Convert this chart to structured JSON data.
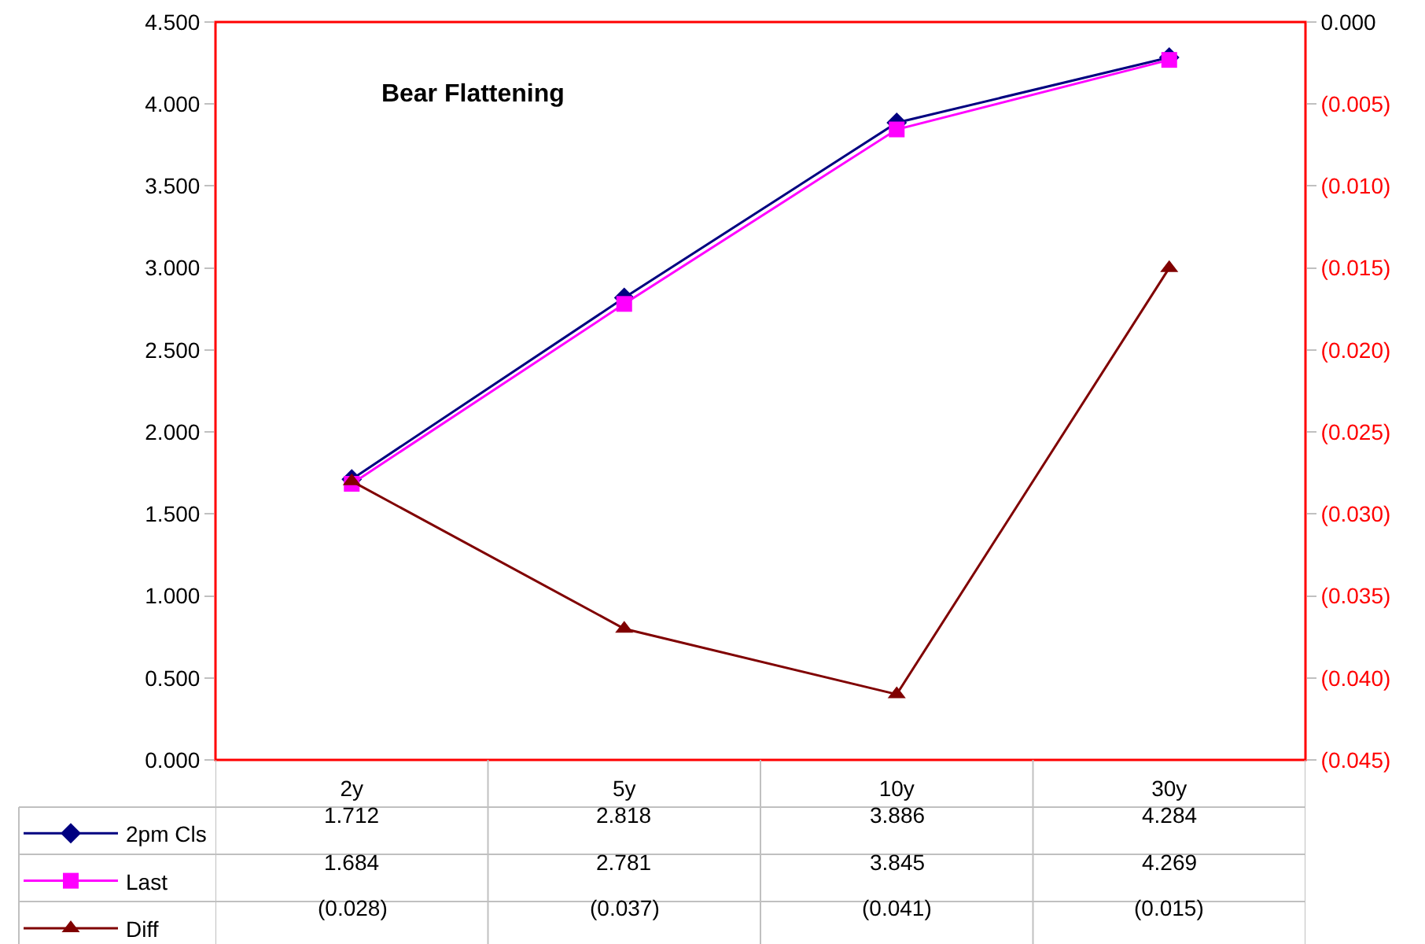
{
  "chart_data": {
    "type": "line",
    "title": "Bear Flattening",
    "categories": [
      "2y",
      "5y",
      "10y",
      "30y"
    ],
    "series": [
      {
        "name": "2pm Cls",
        "color": "#000080",
        "marker": "diamond",
        "values": [
          1.712,
          2.818,
          3.886,
          4.284
        ],
        "value_labels": [
          "1.712",
          "2.818",
          "3.886",
          "4.284"
        ]
      },
      {
        "name": "Last",
        "color": "#ff00ff",
        "marker": "square",
        "values": [
          1.684,
          2.781,
          3.845,
          4.269
        ],
        "value_labels": [
          "1.684",
          "2.781",
          "3.845",
          "4.269"
        ]
      },
      {
        "name": "Diff",
        "color": "#800000",
        "marker": "triangle",
        "axis": "y2",
        "values": [
          -0.028,
          -0.037,
          -0.041,
          -0.015
        ],
        "value_labels": [
          "(0.028)",
          "(0.037)",
          "(0.041)",
          "(0.015)"
        ]
      }
    ],
    "ylim": [
      0,
      4.5
    ],
    "yticks": [
      {
        "value": 0,
        "label": "0.000"
      },
      {
        "value": 0.5,
        "label": "0.500"
      },
      {
        "value": 1,
        "label": "1.000"
      },
      {
        "value": 1.5,
        "label": "1.500"
      },
      {
        "value": 2,
        "label": "2.000"
      },
      {
        "value": 2.5,
        "label": "2.500"
      },
      {
        "value": 3,
        "label": "3.000"
      },
      {
        "value": 3.5,
        "label": "3.500"
      },
      {
        "value": 4,
        "label": "4.000"
      },
      {
        "value": 4.5,
        "label": "4.500"
      }
    ],
    "y2lim": [
      -0.045,
      0
    ],
    "y2ticks": [
      {
        "value": -0.045,
        "label": "(0.045)"
      },
      {
        "value": -0.04,
        "label": "(0.040)"
      },
      {
        "value": -0.035,
        "label": "(0.035)"
      },
      {
        "value": -0.03,
        "label": "(0.030)"
      },
      {
        "value": -0.025,
        "label": "(0.025)"
      },
      {
        "value": -0.02,
        "label": "(0.020)"
      },
      {
        "value": -0.015,
        "label": "(0.015)"
      },
      {
        "value": -0.01,
        "label": "(0.010)"
      },
      {
        "value": -0.005,
        "label": "(0.005)"
      },
      {
        "value": 0,
        "label": "0.000"
      }
    ],
    "grid": false,
    "legend": "bottom left"
  }
}
